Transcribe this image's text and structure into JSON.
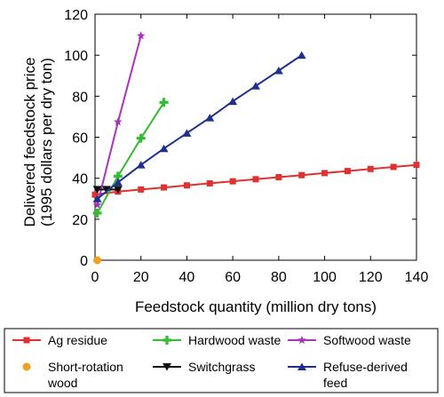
{
  "chart_data": {
    "type": "line",
    "xlabel": "Feedstock quantity (million dry tons)",
    "ylabel_lines": [
      "Delivered feedstock price",
      "(1995 dollars per dry ton)"
    ],
    "xlim": [
      0,
      140
    ],
    "ylim": [
      0,
      120
    ],
    "xticks": [
      0,
      20,
      40,
      60,
      80,
      100,
      120,
      140
    ],
    "yticks": [
      0,
      20,
      40,
      60,
      80,
      100,
      120
    ],
    "grid": false,
    "legend_position": "bottom",
    "series": [
      {
        "name": "Ag residue",
        "color": "#e03030",
        "marker": "square",
        "x": [
          0,
          10,
          20,
          30,
          40,
          50,
          60,
          70,
          80,
          90,
          100,
          110,
          120,
          130,
          140
        ],
        "y": [
          32,
          33.5,
          34.5,
          35.5,
          36.5,
          37.5,
          38.5,
          39.5,
          40.5,
          41.5,
          42.5,
          43.5,
          44.5,
          45.5,
          46.5
        ]
      },
      {
        "name": "Hardwood waste",
        "color": "#33bb33",
        "marker": "plus",
        "x": [
          1,
          10,
          20,
          30
        ],
        "y": [
          23,
          41,
          59.5,
          77
        ]
      },
      {
        "name": "Softwood waste",
        "color": "#aa33bb",
        "marker": "star",
        "x": [
          1,
          10,
          20
        ],
        "y": [
          27,
          67.5,
          109.5
        ]
      },
      {
        "name": "Short-rotation wood",
        "color": "#f0a020",
        "marker": "circle",
        "x": [
          1
        ],
        "y": [
          0
        ]
      },
      {
        "name": "Switchgrass",
        "color": "#111111",
        "marker": "triangle-down",
        "x": [
          1,
          5,
          10
        ],
        "y": [
          34.5,
          34.5,
          34.5
        ]
      },
      {
        "name": "Refuse-derived feed",
        "color": "#1f2f8f",
        "marker": "triangle-up",
        "x": [
          1,
          10,
          20,
          30,
          40,
          50,
          60,
          70,
          80,
          90
        ],
        "y": [
          30,
          38,
          46.5,
          54.5,
          62,
          69.5,
          77.5,
          85,
          92.5,
          100
        ]
      }
    ]
  },
  "legend": {
    "entries": [
      {
        "series": 0,
        "lines": [
          "Ag residue"
        ]
      },
      {
        "series": 1,
        "lines": [
          "Hardwood waste"
        ]
      },
      {
        "series": 2,
        "lines": [
          "Softwood waste"
        ]
      },
      {
        "series": 3,
        "lines": [
          "Short-rotation",
          "wood"
        ]
      },
      {
        "series": 4,
        "lines": [
          "Switchgrass"
        ]
      },
      {
        "series": 5,
        "lines": [
          "Refuse-derived",
          "feed"
        ]
      }
    ]
  }
}
